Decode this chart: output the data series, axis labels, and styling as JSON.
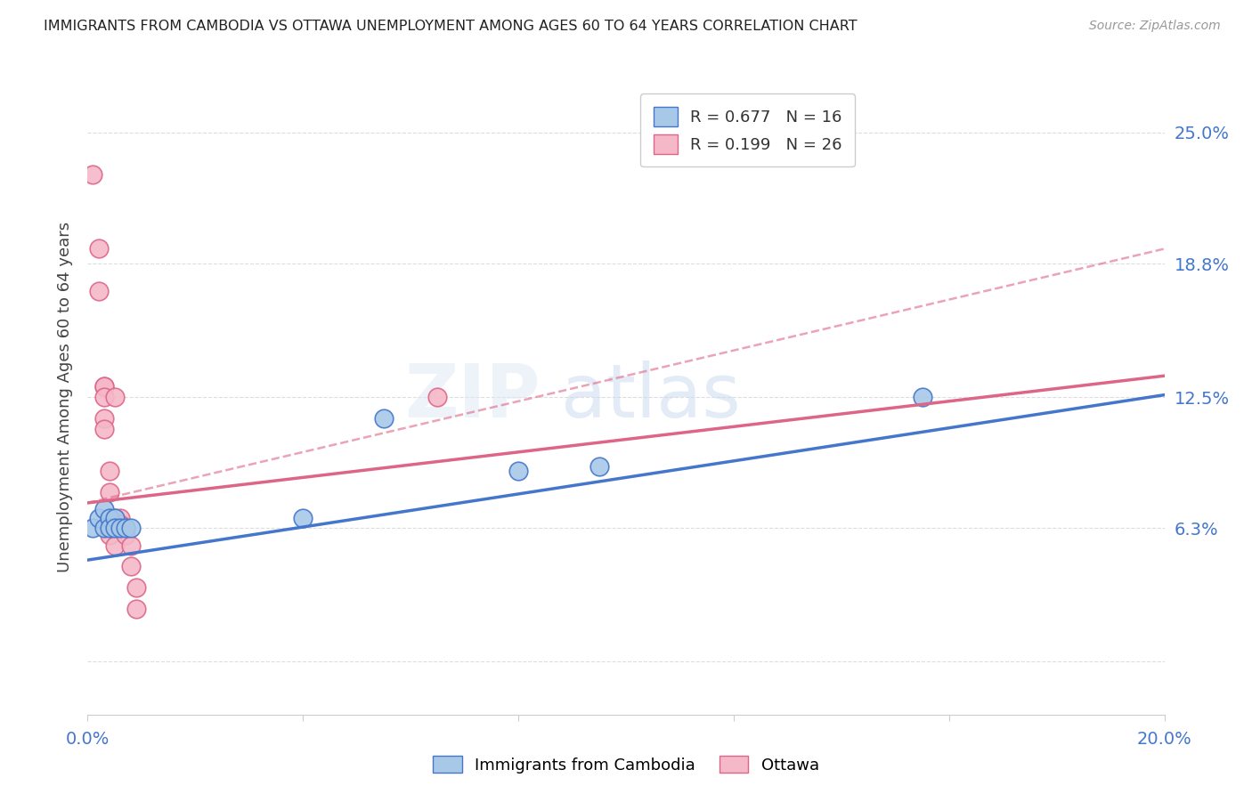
{
  "title": "IMMIGRANTS FROM CAMBODIA VS OTTAWA UNEMPLOYMENT AMONG AGES 60 TO 64 YEARS CORRELATION CHART",
  "source": "Source: ZipAtlas.com",
  "ylabel": "Unemployment Among Ages 60 to 64 years",
  "xlim": [
    0.0,
    0.2
  ],
  "ylim": [
    -0.025,
    0.275
  ],
  "yticks": [
    0.0,
    0.063,
    0.125,
    0.188,
    0.25
  ],
  "ytick_labels": [
    "",
    "6.3%",
    "12.5%",
    "18.8%",
    "25.0%"
  ],
  "xticks": [
    0.0,
    0.04,
    0.08,
    0.12,
    0.16,
    0.2
  ],
  "xtick_labels": [
    "0.0%",
    "",
    "",
    "",
    "",
    "20.0%"
  ],
  "watermark": "ZIPatlas",
  "blue_label": "Immigrants from Cambodia",
  "pink_label": "Ottawa",
  "blue_R": "0.677",
  "blue_N": "16",
  "pink_R": "0.199",
  "pink_N": "26",
  "blue_color": "#a8c8e8",
  "pink_color": "#f5b8c8",
  "blue_line_color": "#4477cc",
  "pink_line_color": "#dd6688",
  "blue_points": [
    [
      0.001,
      0.063
    ],
    [
      0.002,
      0.068
    ],
    [
      0.003,
      0.072
    ],
    [
      0.003,
      0.063
    ],
    [
      0.004,
      0.068
    ],
    [
      0.004,
      0.063
    ],
    [
      0.005,
      0.068
    ],
    [
      0.005,
      0.063
    ],
    [
      0.006,
      0.063
    ],
    [
      0.007,
      0.063
    ],
    [
      0.008,
      0.063
    ],
    [
      0.04,
      0.068
    ],
    [
      0.055,
      0.115
    ],
    [
      0.08,
      0.09
    ],
    [
      0.095,
      0.092
    ],
    [
      0.155,
      0.125
    ]
  ],
  "pink_points": [
    [
      0.001,
      0.23
    ],
    [
      0.002,
      0.195
    ],
    [
      0.002,
      0.175
    ],
    [
      0.003,
      0.13
    ],
    [
      0.003,
      0.13
    ],
    [
      0.003,
      0.125
    ],
    [
      0.003,
      0.115
    ],
    [
      0.003,
      0.11
    ],
    [
      0.004,
      0.09
    ],
    [
      0.004,
      0.08
    ],
    [
      0.004,
      0.068
    ],
    [
      0.004,
      0.065
    ],
    [
      0.004,
      0.06
    ],
    [
      0.005,
      0.125
    ],
    [
      0.005,
      0.068
    ],
    [
      0.005,
      0.063
    ],
    [
      0.005,
      0.055
    ],
    [
      0.006,
      0.068
    ],
    [
      0.006,
      0.065
    ],
    [
      0.007,
      0.063
    ],
    [
      0.007,
      0.06
    ],
    [
      0.008,
      0.055
    ],
    [
      0.008,
      0.045
    ],
    [
      0.009,
      0.035
    ],
    [
      0.009,
      0.025
    ],
    [
      0.065,
      0.125
    ]
  ],
  "blue_line_x": [
    0.0,
    0.2
  ],
  "blue_line_y": [
    0.048,
    0.126
  ],
  "pink_line_x": [
    0.0,
    0.2
  ],
  "pink_line_y": [
    0.075,
    0.135
  ],
  "pink_dashed_line_x": [
    0.0,
    0.2
  ],
  "pink_dashed_line_y": [
    0.075,
    0.195
  ],
  "grid_color": "#dddddd",
  "bg_color": "#ffffff"
}
